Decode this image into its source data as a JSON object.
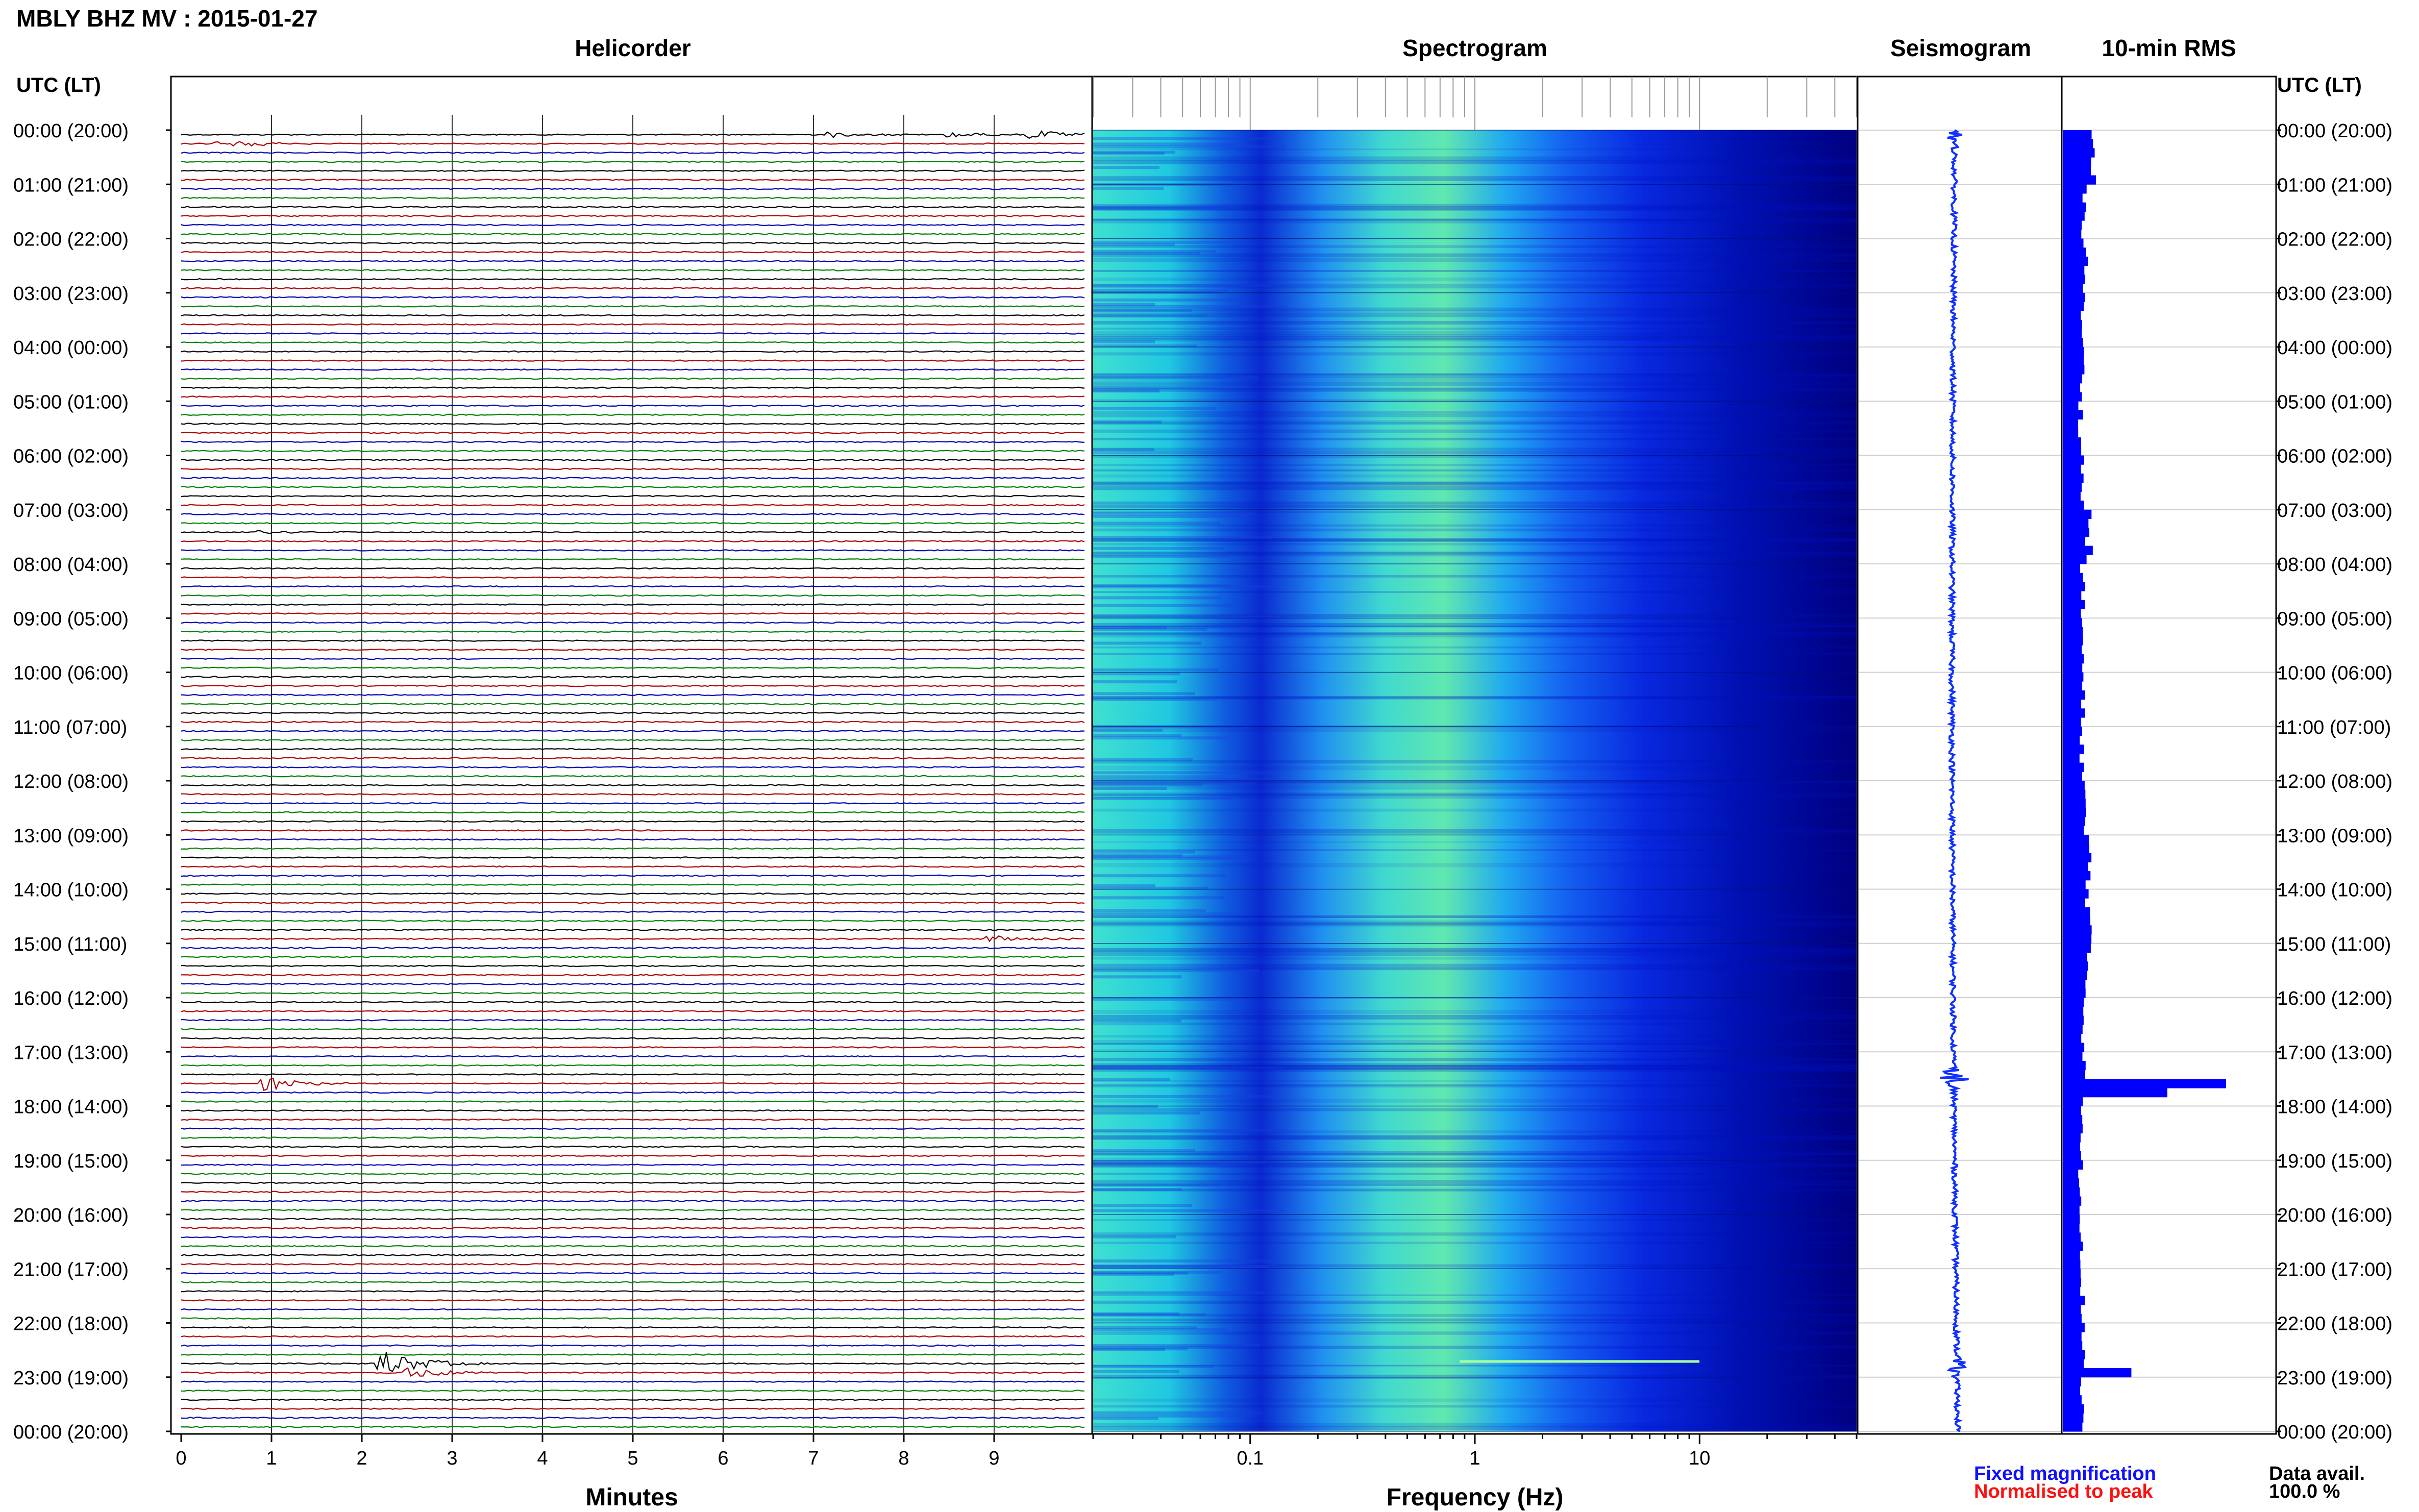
{
  "figure_title": "MBLY BHZ MV : 2015-01-27",
  "time_axis_label": "UTC (LT)",
  "time_labels": [
    "00:00 (20:00)",
    "01:00 (21:00)",
    "02:00 (22:00)",
    "03:00 (23:00)",
    "04:00 (00:00)",
    "05:00 (01:00)",
    "06:00 (02:00)",
    "07:00 (03:00)",
    "08:00 (04:00)",
    "09:00 (05:00)",
    "10:00 (06:00)",
    "11:00 (07:00)",
    "12:00 (08:00)",
    "13:00 (09:00)",
    "14:00 (10:00)",
    "15:00 (11:00)",
    "16:00 (12:00)",
    "17:00 (13:00)",
    "18:00 (14:00)",
    "19:00 (15:00)",
    "20:00 (16:00)",
    "21:00 (17:00)",
    "22:00 (18:00)",
    "23:00 (19:00)",
    "00:00 (20:00)"
  ],
  "panels": {
    "helicorder": {
      "title": "Helicorder",
      "xlabel": "Minutes",
      "ticks": [
        "0",
        "1",
        "2",
        "3",
        "4",
        "5",
        "6",
        "7",
        "8",
        "9"
      ]
    },
    "spectrogram": {
      "title": "Spectrogram",
      "xlabel": "Frequency (Hz)",
      "ticks": [
        "0.1",
        "1",
        "10"
      ]
    },
    "seismogram": {
      "title": "Seismogram"
    },
    "rms": {
      "title": "10-min RMS"
    }
  },
  "legend": {
    "fixed": "Fixed magnification",
    "normalised": "Normalised to peak",
    "fixed_color": "#1010ff",
    "normalised_color": "#ff1010"
  },
  "data_availability": {
    "label": "Data avail.",
    "value": "100.0 %"
  },
  "colors": {
    "trace_cycle": [
      "#000000",
      "#b00000",
      "#0000b0",
      "#008000"
    ],
    "rms_bar": "#0000ff",
    "seismogram": "#1030ff"
  },
  "chart_data": [
    {
      "type": "line",
      "title": "Helicorder",
      "xlabel": "Minutes",
      "xlim": [
        0,
        10
      ],
      "rows_per_hour": 6,
      "row_minutes": 10,
      "events": [
        {
          "utc_hour": 0.0,
          "minute": 7.2,
          "amp": 2
        },
        {
          "utc_hour": 0.0,
          "minute": 8.5,
          "amp": 2
        },
        {
          "utc_hour": 0.0,
          "minute": 9.4,
          "amp": 4
        },
        {
          "utc_hour": 0.17,
          "minute": 0.4,
          "amp": 4
        },
        {
          "utc_hour": 7.33,
          "minute": 0.7,
          "amp": 2
        },
        {
          "utc_hour": 14.83,
          "minute": 8.9,
          "amp": 4
        },
        {
          "utc_hour": 17.5,
          "minute": 0.9,
          "amp": 6
        },
        {
          "utc_hour": 22.67,
          "minute": 2.2,
          "amp": 12
        },
        {
          "utc_hour": 22.83,
          "minute": 2.5,
          "amp": 5
        }
      ]
    },
    {
      "type": "heatmap",
      "title": "Spectrogram",
      "xlabel": "Frequency (Hz)",
      "xscale": "log",
      "xlim": [
        0.02,
        50
      ],
      "colormap": [
        "#00008b",
        "#0000ff",
        "#1e90ff",
        "#00ced1",
        "#7fffd4",
        "#adff2f"
      ]
    },
    {
      "type": "line",
      "title": "Seismogram",
      "peaks": [
        {
          "utc_hour": 0.1,
          "amp": 0.4
        },
        {
          "utc_hour": 17.5,
          "amp": 1.0
        },
        {
          "utc_hour": 22.8,
          "amp": 0.6
        }
      ]
    },
    {
      "type": "bar",
      "title": "10-min RMS",
      "orientation": "horizontal",
      "bin_minutes": 10,
      "hourly_profile": [
        {
          "utc_hour": 0,
          "rms": 0.18
        },
        {
          "utc_hour": 1,
          "rms": 0.13
        },
        {
          "utc_hour": 2,
          "rms": 0.14
        },
        {
          "utc_hour": 3,
          "rms": 0.12
        },
        {
          "utc_hour": 4,
          "rms": 0.12
        },
        {
          "utc_hour": 5,
          "rms": 0.11
        },
        {
          "utc_hour": 6,
          "rms": 0.12
        },
        {
          "utc_hour": 7,
          "rms": 0.16
        },
        {
          "utc_hour": 8,
          "rms": 0.12
        },
        {
          "utc_hour": 9,
          "rms": 0.12
        },
        {
          "utc_hour": 10,
          "rms": 0.12
        },
        {
          "utc_hour": 11,
          "rms": 0.12
        },
        {
          "utc_hour": 12,
          "rms": 0.13
        },
        {
          "utc_hour": 13,
          "rms": 0.16
        },
        {
          "utc_hour": 14,
          "rms": 0.16
        },
        {
          "utc_hour": 15,
          "rms": 0.15
        },
        {
          "utc_hour": 16,
          "rms": 0.13
        },
        {
          "utc_hour": 17,
          "rms": 0.14
        },
        {
          "utc_hour": 18,
          "rms": 0.11
        },
        {
          "utc_hour": 19,
          "rms": 0.11
        },
        {
          "utc_hour": 20,
          "rms": 0.12
        },
        {
          "utc_hour": 21,
          "rms": 0.12
        },
        {
          "utc_hour": 22,
          "rms": 0.13
        },
        {
          "utc_hour": 23,
          "rms": 0.12
        }
      ],
      "peaks": [
        {
          "utc_hour": 17.5,
          "rms": 1.0
        },
        {
          "utc_hour": 17.67,
          "rms": 0.64
        },
        {
          "utc_hour": 22.83,
          "rms": 0.42
        }
      ]
    }
  ]
}
